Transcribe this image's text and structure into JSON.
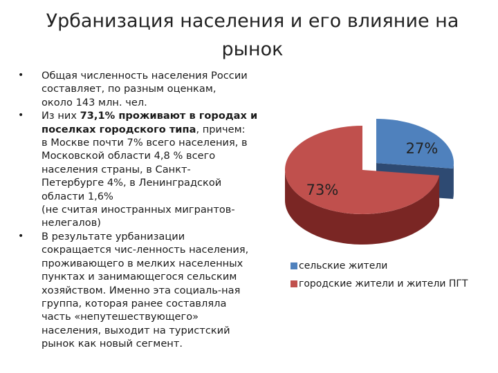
{
  "slide": {
    "title_line1": "Урбанизация населения и его влияние на",
    "title_line2": "рынок",
    "bullet_char": "•",
    "bullet1": {
      "lines": [
        "Общая численность населения России",
        "составляет, по разным оценкам,",
        "около 143 млн. чел."
      ]
    },
    "bullet2": {
      "prefix": "Из них ",
      "bold_line1": "73,1% проживают в городах и",
      "bold_line2": "поселках городского типа",
      "after_bold": ", причем:",
      "lines": [
        "в Москве почти 7% всего населения, в",
        "Московской области 4,8 % всего",
        "населения страны, в Санкт-",
        "Петербурге 4%, в Ленинградской",
        "области 1,6%",
        "(не считая иностранных мигрантов-",
        "нелегалов)"
      ]
    },
    "bullet3": {
      "lines": [
        "В результате урбанизации",
        "сокращается чис-ленность населения,",
        "проживающего в мелких населенных",
        "пунктах и занимающегося сельским",
        "хозяйством. Именно эта социаль-ная",
        "группа, которая ранее составляла",
        "часть «непутешествующего»",
        "населения, выходит на туристский",
        "рынок как новый сегмент."
      ]
    }
  },
  "chart_data": {
    "type": "pie",
    "style": "3d-exploded",
    "slices": [
      {
        "label": "сельские жители",
        "value": 27,
        "value_label": "27%",
        "color": "#4f81bd",
        "side_color": "#2e4a72"
      },
      {
        "label": "городские жители и жители ПГТ",
        "value": 73,
        "value_label": "73%",
        "color": "#c0504d",
        "side_color": "#7a2624"
      }
    ],
    "legend_position": "bottom-right"
  }
}
